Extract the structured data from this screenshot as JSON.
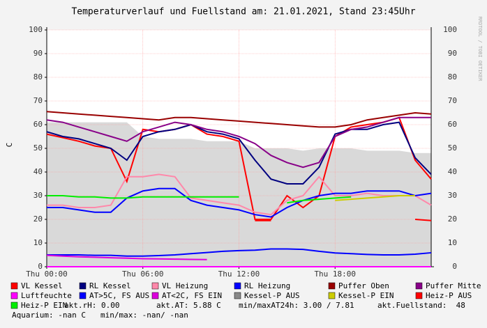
{
  "chart_data": {
    "type": "line",
    "title": "Temperaturverlauf und Fuellstand am: 21.01.2021, Stand 23:45Uhr",
    "y_label": "C",
    "side_text": "RRDTOOL / TOBI OETIKER",
    "xlim": [
      0,
      24
    ],
    "xticks": [
      {
        "value": 0,
        "label": "Thu 00:00"
      },
      {
        "value": 6,
        "label": "Thu 06:00"
      },
      {
        "value": 12,
        "label": "Thu 12:00"
      },
      {
        "value": 18,
        "label": "Thu 18:00"
      }
    ],
    "ylim": [
      0,
      100
    ],
    "yticks": [
      0,
      10,
      20,
      30,
      40,
      50,
      60,
      70,
      80,
      90,
      100
    ],
    "grid": true,
    "x": [
      0,
      1,
      2,
      3,
      4,
      5,
      6,
      7,
      8,
      9,
      10,
      11,
      12,
      13,
      14,
      15,
      16,
      17,
      18,
      19,
      20,
      21,
      22,
      23,
      24
    ],
    "series": [
      {
        "name": "VL Kessel",
        "color": "#ff0000",
        "values": [
          56,
          54.5,
          53,
          51,
          50,
          36,
          58,
          57,
          58,
          60,
          56,
          55,
          53,
          20,
          20,
          30,
          25,
          30,
          55,
          59,
          60,
          61,
          63,
          45,
          37
        ]
      },
      {
        "name": "RL Kessel",
        "color": "#000080",
        "values": [
          57,
          55,
          54,
          52,
          50,
          45,
          55,
          57,
          58,
          60,
          57,
          56,
          54,
          45,
          37,
          35,
          35,
          42,
          56,
          58,
          58,
          60,
          61,
          46,
          39
        ]
      },
      {
        "name": "VL Heizung",
        "color": "#ff88aa",
        "values": [
          26,
          26,
          25,
          25,
          26,
          38,
          38,
          39,
          38,
          29,
          28,
          27,
          26,
          23,
          22,
          28,
          30,
          38,
          30,
          30,
          31,
          30,
          30,
          30,
          26
        ]
      },
      {
        "name": "RL Heizung",
        "color": "#0000ff",
        "values": [
          25,
          25,
          24,
          23,
          23,
          29,
          32,
          33,
          33,
          28,
          26,
          25,
          24,
          22,
          21,
          25,
          28,
          30,
          31,
          31,
          32,
          32,
          32,
          30,
          31
        ]
      },
      {
        "name": "Puffer Oben",
        "color": "#990000",
        "values": [
          65.5,
          65,
          64.5,
          64,
          63.5,
          63,
          62.5,
          62,
          63,
          63,
          62.5,
          62,
          61.5,
          61,
          60.5,
          60,
          59.5,
          59,
          59,
          60,
          62,
          63,
          64,
          65,
          64.5
        ]
      },
      {
        "name": "Puffer Mitte",
        "color": "#880088",
        "values": [
          62,
          61,
          59,
          57,
          55,
          53,
          57,
          59,
          61,
          60,
          58,
          57,
          55,
          52,
          47,
          44,
          42,
          44,
          55,
          58,
          59,
          61,
          63,
          63,
          63
        ]
      },
      {
        "name": "Luftfeuchte",
        "color": "#ff00ff",
        "values": [
          0,
          0,
          0,
          0,
          0,
          0,
          0,
          0,
          0,
          0,
          0,
          0,
          0,
          0,
          0,
          0,
          0,
          0,
          0,
          0,
          0,
          0,
          0,
          0,
          0
        ]
      },
      {
        "name": "AT>5C, FS AUS",
        "color": "#0000ff",
        "values": [
          5,
          5,
          5,
          4.8,
          4.8,
          4.5,
          4.5,
          4.7,
          5,
          5.5,
          6,
          6.5,
          6.8,
          7,
          7.5,
          7.5,
          7.3,
          6.5,
          5.8,
          5.5,
          5.2,
          5,
          5,
          5.3,
          5.9
        ]
      },
      {
        "name": "AT<2C, FS EIN",
        "color": "#dd00dd",
        "values": [
          4.8,
          4.5,
          4.2,
          4,
          3.8,
          3.6,
          3.4,
          3.3,
          3.2,
          3.1,
          3,
          null,
          null,
          null,
          null,
          null,
          null,
          null,
          null,
          null,
          null,
          null,
          null,
          null,
          null
        ]
      },
      {
        "name": "Kessel-P AUS",
        "color": "#888888",
        "style": "area",
        "fill": "#d9d9d9",
        "values": [
          61,
          61,
          61,
          61,
          61,
          61,
          55,
          54,
          54,
          54,
          53,
          53,
          53,
          50,
          50,
          50,
          49,
          50,
          50,
          50,
          49,
          49,
          49,
          48,
          48
        ]
      },
      {
        "name": "Kessel-P EIN",
        "color": "#cccc00",
        "values": [
          null,
          null,
          null,
          null,
          null,
          null,
          null,
          null,
          null,
          null,
          null,
          null,
          null,
          null,
          null,
          null,
          null,
          null,
          28,
          28.5,
          29,
          29.5,
          30,
          30,
          null
        ]
      },
      {
        "name": "Heiz-P AUS",
        "color": "#ff0000",
        "values": [
          null,
          null,
          null,
          null,
          null,
          null,
          null,
          null,
          null,
          null,
          null,
          null,
          null,
          19.5,
          19.5,
          null,
          null,
          null,
          null,
          null,
          null,
          null,
          null,
          20,
          19.5
        ]
      },
      {
        "name": "Heiz-P EIN",
        "color": "#00ee00",
        "values": [
          30,
          30,
          29.5,
          29.5,
          29,
          29,
          29.5,
          29.5,
          29.5,
          29.5,
          29.5,
          29.5,
          29.5,
          null,
          null,
          27,
          28,
          28.5,
          29,
          29.5,
          null,
          null,
          null,
          null,
          null
        ]
      }
    ],
    "stats": [
      "akt.rH: 0.00",
      "akt.AT: 5.88 C",
      "min/maxAT24h: 3.00 / 7.81",
      "akt.Fuellstand:  48",
      "Aquarium: -nan C",
      "min/max: -nan/ -nan"
    ]
  }
}
